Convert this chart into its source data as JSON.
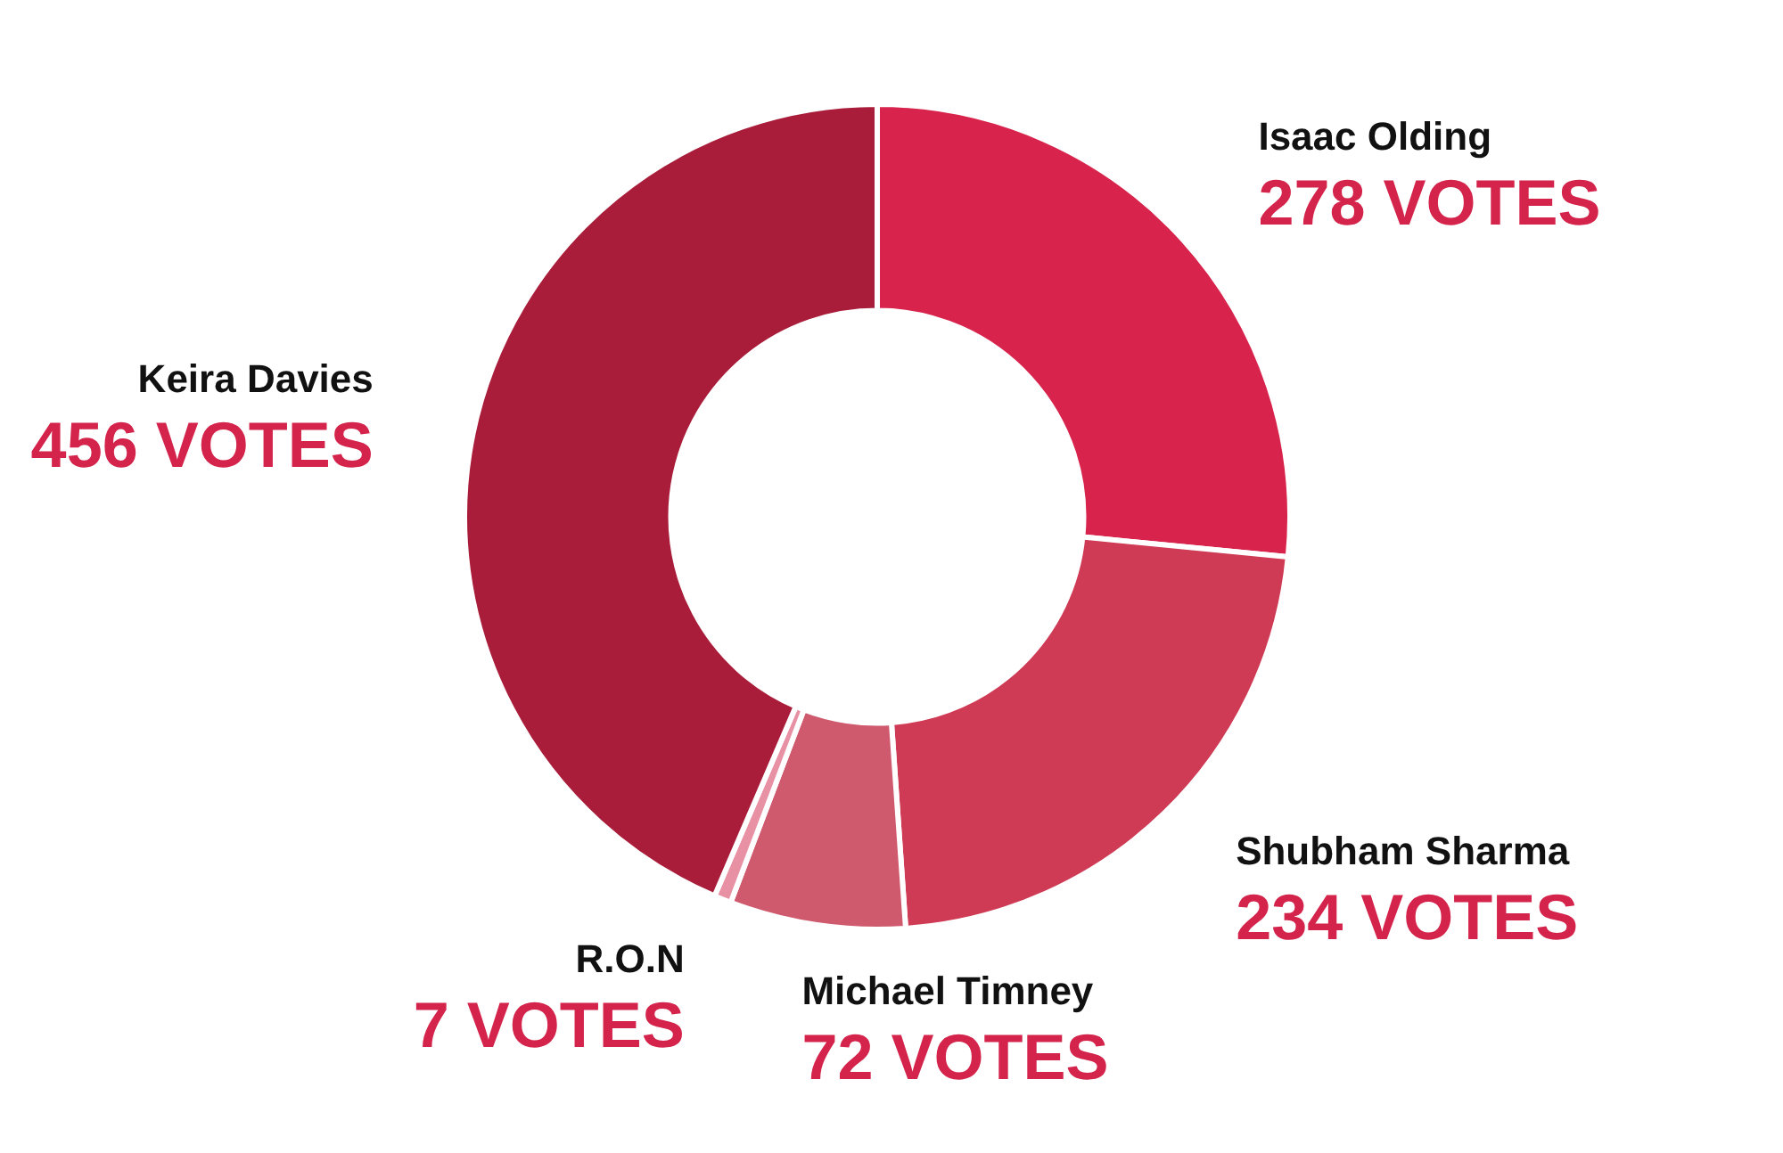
{
  "chart_data": {
    "type": "donut",
    "categories": [
      "Isaac Olding",
      "Shubham Sharma",
      "Michael Timney",
      "R.O.N",
      "Keira Davies"
    ],
    "values": [
      278,
      234,
      72,
      7,
      456
    ],
    "value_labels": [
      "278 VOTES",
      "234 VOTES",
      "72 VOTES",
      "7 VOTES",
      "456 VOTES"
    ],
    "colors": [
      "#d8234c",
      "#cf3a55",
      "#cf5a6e",
      "#e891a5",
      "#a91d3a"
    ],
    "legend": false
  }
}
